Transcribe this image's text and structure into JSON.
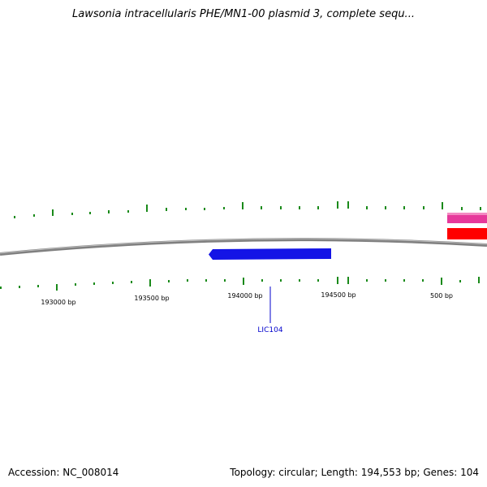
{
  "title": "Lawsonia intracellularis PHE/MN1-00 plasmid 3, complete sequ...",
  "footer": {
    "accession": "Accession: NC_008014",
    "topology": "Topology: circular; Length: 194,553 bp; Genes: 104"
  },
  "backbone": {
    "color": "#808080"
  },
  "ticks": {
    "color": "#1a8a1a",
    "labels": [
      "193000 bp",
      "193500 bp",
      "194000 bp",
      "194500 bp",
      "500 bp"
    ]
  },
  "genes": [
    {
      "name": "LIC104",
      "color": "#1414e6",
      "strand": "minus",
      "labeled": true
    },
    {
      "name": "",
      "color": "#e6399b",
      "strand": "plus",
      "labeled": false
    },
    {
      "name": "",
      "color": "#ff0000",
      "strand": "plus",
      "labeled": false
    }
  ]
}
